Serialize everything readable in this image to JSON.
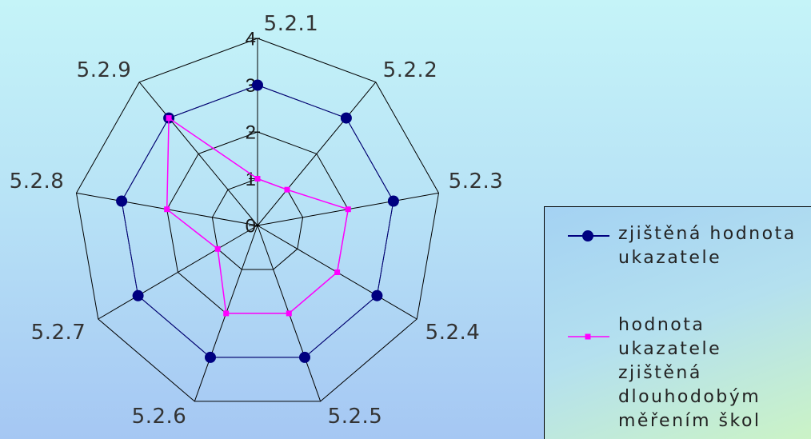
{
  "chart_data": {
    "type": "radar",
    "categories": [
      "5.2.1",
      "5.2.2",
      "5.2.3",
      "5.2.4",
      "5.2.5",
      "5.2.6",
      "5.2.7",
      "5.2.8",
      "5.2.9"
    ],
    "series": [
      {
        "name": "zjištěná hodnota ukazatele",
        "values": [
          3,
          3,
          3,
          3,
          3,
          3,
          3,
          3,
          3
        ],
        "color": "#000080",
        "marker": "circle"
      },
      {
        "name": "hodnota ukazatele zjištěná dlouhodobým měřením škol",
        "values": [
          1,
          1,
          2,
          2,
          2,
          2,
          1,
          2,
          3
        ],
        "color": "#ff00ff",
        "marker": "square"
      }
    ],
    "r_range": [
      0,
      4
    ],
    "r_ticks": [
      0,
      1,
      2,
      3,
      4
    ],
    "grid": true,
    "legend": "bottom-right"
  }
}
